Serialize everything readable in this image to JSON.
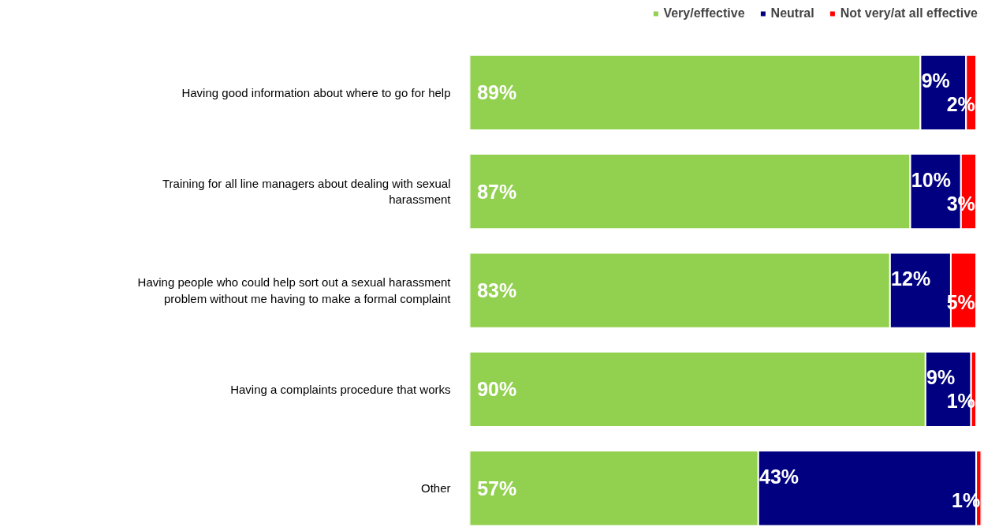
{
  "chart_data": {
    "type": "bar",
    "orientation": "horizontal",
    "stacked": true,
    "categories": [
      "Having good information about where to go for help",
      "Training for all line managers about dealing with sexual harassment",
      "Having people who could help sort out a sexual harassment problem without me having to make a formal complaint",
      "Having a complaints procedure that works",
      "Other"
    ],
    "series": [
      {
        "name": "Very/effective",
        "color": "#92d050",
        "values": [
          89,
          87,
          83,
          90,
          57
        ],
        "value_labels": [
          "89%",
          "87%",
          "83%",
          "90%",
          "57%"
        ]
      },
      {
        "name": "Neutral",
        "color": "#000080",
        "values": [
          9,
          10,
          12,
          9,
          43
        ],
        "value_labels": [
          "9%",
          "10%",
          "12%",
          "9%",
          "43%"
        ]
      },
      {
        "name": "Not very/at all effective",
        "color": "#ff0000",
        "values": [
          2,
          3,
          5,
          1,
          1
        ],
        "value_labels": [
          "2%",
          "3%",
          "5%",
          "1%",
          "1%"
        ]
      }
    ],
    "xlim": [
      0,
      101
    ],
    "tick_labels": "y",
    "grid": false,
    "legend": "top right"
  }
}
